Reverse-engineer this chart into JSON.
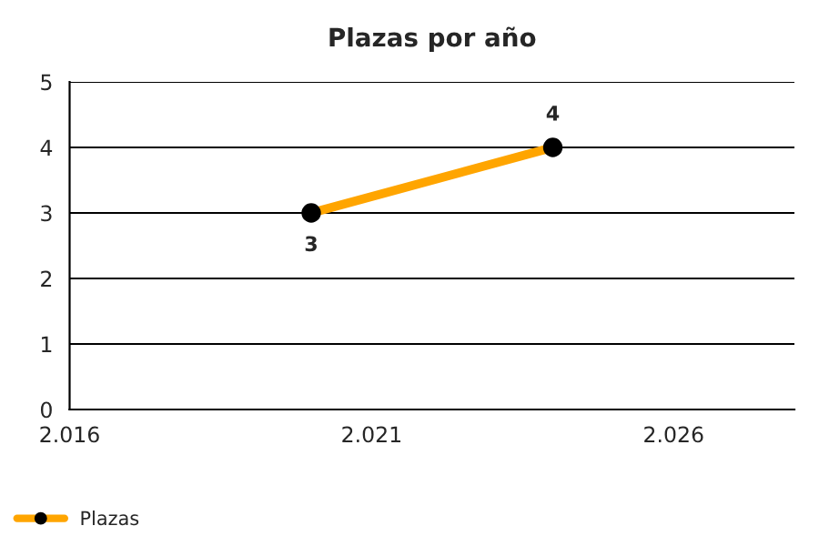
{
  "chart_data": {
    "type": "line",
    "title": "Plazas por año",
    "x": [
      2020,
      2024
    ],
    "series": [
      {
        "name": "Plazas",
        "color": "#ffa500",
        "values": [
          3,
          4
        ]
      }
    ],
    "xlim": [
      2016,
      2028
    ],
    "xticks": [
      {
        "value": 2016,
        "label": "2.016"
      },
      {
        "value": 2021,
        "label": "2.021"
      },
      {
        "value": 2026,
        "label": "2.026"
      }
    ],
    "ylim": [
      0,
      5
    ],
    "yticks": [
      0,
      1,
      2,
      3,
      4,
      5
    ],
    "grid": "y",
    "legend": "bottom left",
    "marker": "circle",
    "line_style": "solid",
    "data_labels": true
  }
}
